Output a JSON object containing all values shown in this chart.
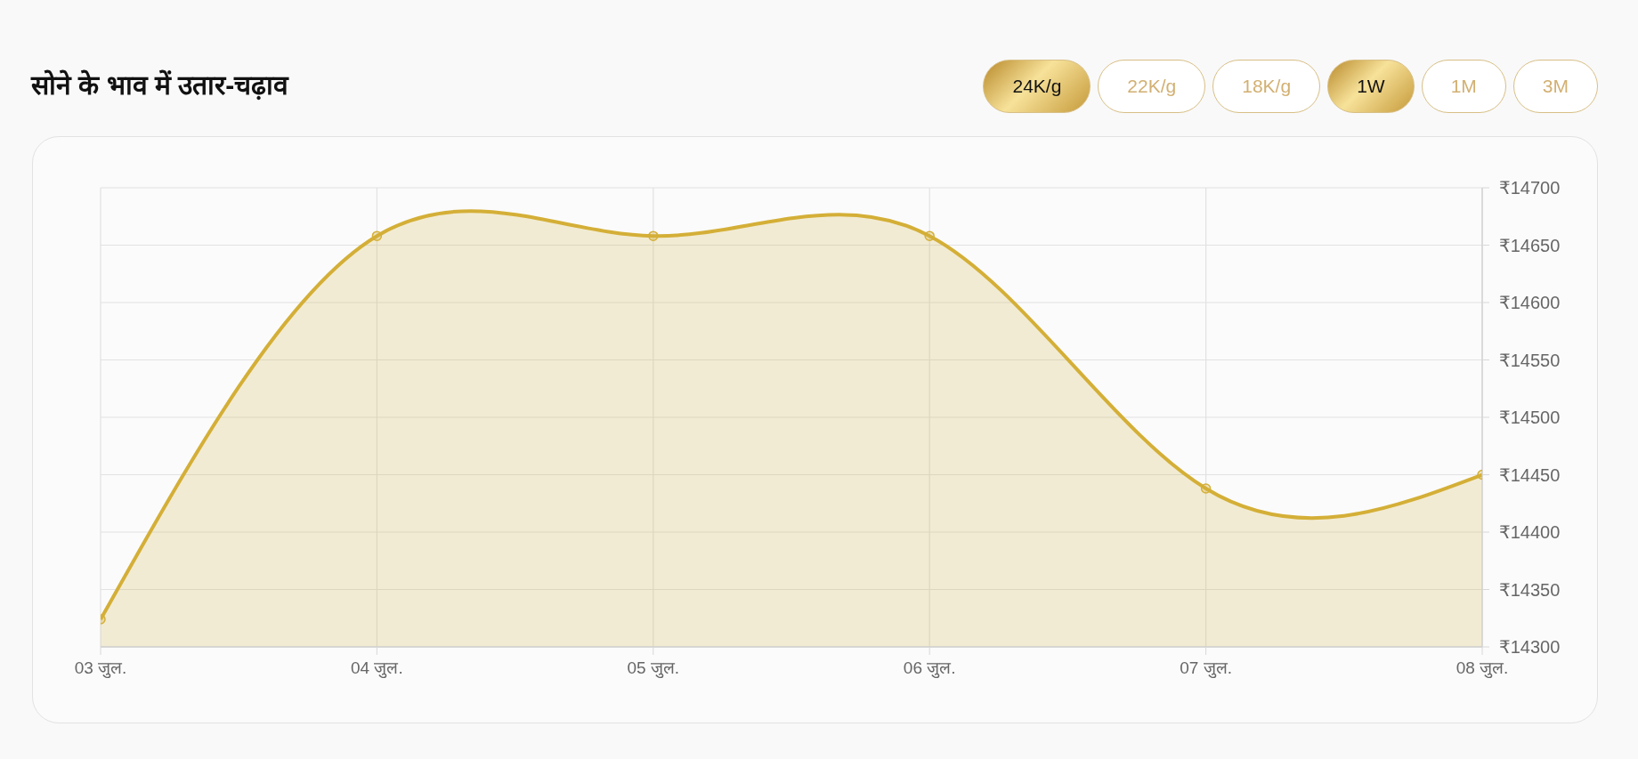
{
  "chart_data": {
    "type": "area",
    "title": "सोने के भाव में उतार-चढ़ाव",
    "categories": [
      "03 जुल.",
      "04 जुल.",
      "05 जुल.",
      "06 जुल.",
      "07 जुल.",
      "08 जुल."
    ],
    "values": [
      14324,
      14658,
      14658,
      14658,
      14438,
      14450
    ],
    "color": "#d4af37",
    "ylim": [
      14300,
      14700
    ],
    "yticks": [
      {
        "value": 14300,
        "label": "₹14300"
      },
      {
        "value": 14350,
        "label": "₹14350"
      },
      {
        "value": 14400,
        "label": "₹14400"
      },
      {
        "value": 14450,
        "label": "₹14450"
      },
      {
        "value": 14500,
        "label": "₹14500"
      },
      {
        "value": 14550,
        "label": "₹14550"
      },
      {
        "value": 14600,
        "label": "₹14600"
      },
      {
        "value": 14650,
        "label": "₹14650"
      },
      {
        "value": 14700,
        "label": "₹14700"
      }
    ],
    "grid": true,
    "marker": "circle",
    "annotations": [
      "24K/g",
      "22K/g",
      "18K/g",
      "1W",
      "1M",
      "3M"
    ]
  }
}
